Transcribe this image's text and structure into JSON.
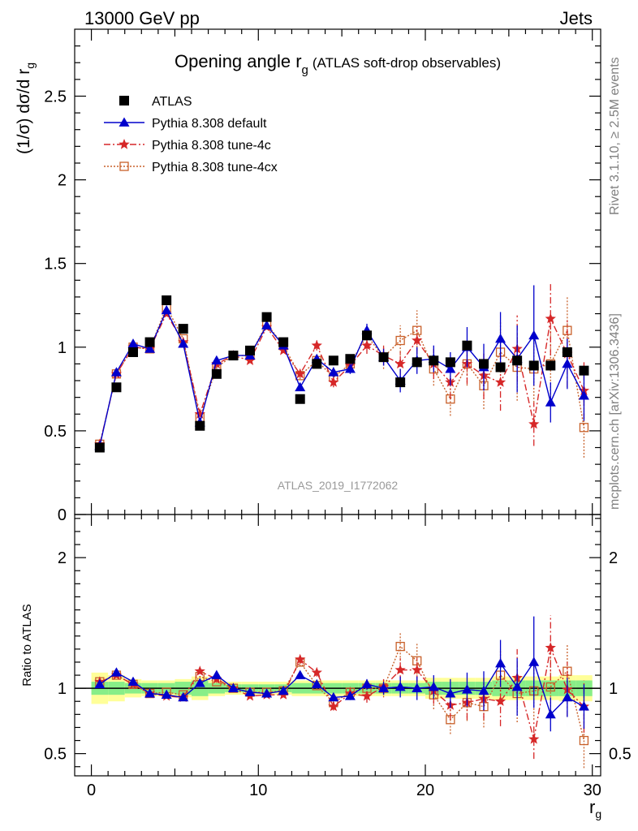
{
  "header": {
    "left": "13000 GeV pp",
    "right": "Jets"
  },
  "side_labels": {
    "rivet": "Rivet 3.1.10, ≥ 2.5M events",
    "mcplots": "mcplots.cern.ch [arXiv:1306.3436]"
  },
  "chart_data": [
    {
      "type": "scatter",
      "title_main": "Opening angle r",
      "title_sub": "g",
      "title_extra": "(ATLAS soft-drop observables)",
      "ylabel": "(1/σ) dσ/d r",
      "ylabel_sub": "g",
      "watermark": "ATLAS_2019_I1772062",
      "xlim": [
        -1,
        30.5
      ],
      "ylim": [
        0,
        2.9
      ],
      "yticks": [
        0,
        0.5,
        1,
        1.5,
        2,
        2.5
      ],
      "ytick_labels": [
        "0",
        "0.5",
        "1",
        "1.5",
        "2",
        "2.5"
      ],
      "x": [
        0.5,
        1.5,
        2.5,
        3.5,
        4.5,
        5.5,
        6.5,
        7.5,
        8.5,
        9.5,
        10.5,
        11.5,
        12.5,
        13.5,
        14.5,
        15.5,
        16.5,
        17.5,
        18.5,
        19.5,
        20.5,
        21.5,
        22.5,
        23.5,
        24.5,
        25.5,
        26.5,
        27.5,
        28.5,
        29.5
      ],
      "legend": [
        "ATLAS",
        "Pythia 8.308 default",
        "Pythia 8.308 tune-4c",
        "Pythia 8.308 tune-4cx"
      ],
      "series": [
        {
          "name": "ATLAS",
          "color": "#000000",
          "values": [
            0.4,
            0.76,
            0.97,
            1.03,
            1.28,
            1.11,
            0.53,
            0.84,
            0.95,
            0.98,
            1.18,
            1.03,
            0.69,
            0.9,
            0.92,
            0.93,
            1.07,
            0.94,
            0.79,
            0.91,
            0.92,
            0.91,
            1.01,
            0.9,
            0.88,
            0.92,
            0.89,
            0.89,
            0.97,
            0.86
          ]
        },
        {
          "name": "Pythia 8.308 default",
          "color": "#0000cc",
          "values": [
            0.41,
            0.85,
            1.02,
            0.99,
            1.22,
            1.02,
            0.55,
            0.92,
            0.95,
            0.95,
            1.13,
            1.01,
            0.76,
            0.93,
            0.85,
            0.87,
            1.1,
            0.94,
            0.8,
            0.92,
            0.93,
            0.87,
            1.0,
            0.88,
            1.05,
            0.93,
            1.07,
            0.67,
            0.9,
            0.71
          ],
          "errors": [
            0.01,
            0.01,
            0.01,
            0.01,
            0.01,
            0.01,
            0.01,
            0.01,
            0.01,
            0.01,
            0.01,
            0.01,
            0.02,
            0.02,
            0.03,
            0.03,
            0.04,
            0.05,
            0.07,
            0.08,
            0.08,
            0.1,
            0.12,
            0.14,
            0.16,
            0.2,
            0.3,
            0.12,
            0.15,
            0.15
          ]
        },
        {
          "name": "Pythia 8.308 tune-4c",
          "color": "#d62728",
          "values": [
            0.42,
            0.84,
            1.0,
            0.99,
            1.2,
            1.03,
            0.6,
            0.9,
            0.95,
            0.92,
            1.12,
            0.98,
            0.84,
            1.01,
            0.79,
            0.89,
            1.01,
            0.95,
            0.9,
            1.04,
            0.9,
            0.79,
            0.9,
            0.83,
            0.79,
            0.99,
            0.54,
            1.17,
            0.96,
            0.74
          ],
          "errors": [
            0.01,
            0.01,
            0.01,
            0.01,
            0.01,
            0.01,
            0.01,
            0.01,
            0.01,
            0.01,
            0.01,
            0.01,
            0.02,
            0.03,
            0.03,
            0.04,
            0.05,
            0.06,
            0.07,
            0.08,
            0.09,
            0.1,
            0.12,
            0.14,
            0.17,
            0.2,
            0.13,
            0.22,
            0.2,
            0.17
          ]
        },
        {
          "name": "Pythia 8.308 tune-4cx",
          "color": "#c8602a",
          "values": [
            0.42,
            0.84,
            1.0,
            0.99,
            1.24,
            1.05,
            0.58,
            0.88,
            0.95,
            0.95,
            1.14,
            1.01,
            0.83,
            0.92,
            0.82,
            0.9,
            1.07,
            0.94,
            1.04,
            1.1,
            0.87,
            0.69,
            0.9,
            0.77,
            0.97,
            0.88,
            0.87,
            0.9,
            1.1,
            0.52
          ],
          "errors": [
            0.01,
            0.01,
            0.01,
            0.01,
            0.01,
            0.01,
            0.01,
            0.01,
            0.01,
            0.01,
            0.01,
            0.01,
            0.02,
            0.03,
            0.03,
            0.04,
            0.06,
            0.07,
            0.09,
            0.12,
            0.1,
            0.1,
            0.13,
            0.14,
            0.18,
            0.2,
            0.2,
            0.22,
            0.2,
            0.18
          ]
        }
      ]
    },
    {
      "type": "scatter",
      "ylabel": "Ratio to ATLAS",
      "xlabel": "r",
      "xlabel_sub": "g",
      "xlim": [
        -1,
        30.5
      ],
      "ylim": [
        0.33,
        2.33
      ],
      "xticks": [
        0,
        10,
        20,
        30
      ],
      "xtick_labels": [
        "0",
        "10",
        "20",
        "30"
      ],
      "yticks": [
        0.5,
        1,
        2
      ],
      "ytick_labels": [
        "0.5",
        "1",
        "2"
      ],
      "band_inner": [
        0.05,
        0.05,
        0.04,
        0.04,
        0.04,
        0.05,
        0.06,
        0.04,
        0.03,
        0.03,
        0.03,
        0.03,
        0.04,
        0.04,
        0.04,
        0.04,
        0.04,
        0.04,
        0.04,
        0.04,
        0.05,
        0.05,
        0.05,
        0.05,
        0.06,
        0.06,
        0.06,
        0.06,
        0.06,
        0.06
      ],
      "band_outer": [
        0.12,
        0.1,
        0.07,
        0.06,
        0.06,
        0.07,
        0.09,
        0.06,
        0.05,
        0.05,
        0.05,
        0.05,
        0.06,
        0.06,
        0.06,
        0.06,
        0.06,
        0.06,
        0.06,
        0.06,
        0.08,
        0.08,
        0.08,
        0.08,
        0.09,
        0.09,
        0.09,
        0.09,
        0.1,
        0.1
      ],
      "series": [
        {
          "name": "Pythia 8.308 default",
          "color": "#0000cc",
          "values": [
            1.03,
            1.12,
            1.05,
            0.96,
            0.95,
            0.93,
            1.04,
            1.1,
            1.0,
            0.97,
            0.96,
            0.98,
            1.1,
            1.03,
            0.93,
            0.94,
            1.03,
            1.0,
            1.01,
            1.0,
            1.01,
            0.96,
            0.99,
            0.98,
            1.19,
            1.01,
            1.2,
            0.8,
            0.93,
            0.86
          ],
          "errors": [
            0.01,
            0.01,
            0.01,
            0.01,
            0.01,
            0.01,
            0.01,
            0.01,
            0.01,
            0.01,
            0.01,
            0.01,
            0.02,
            0.03,
            0.03,
            0.03,
            0.04,
            0.05,
            0.08,
            0.09,
            0.09,
            0.11,
            0.13,
            0.15,
            0.18,
            0.22,
            0.35,
            0.13,
            0.15,
            0.17
          ]
        },
        {
          "name": "Pythia 8.308 tune-4c",
          "color": "#d62728",
          "values": [
            1.05,
            1.1,
            1.03,
            0.96,
            0.94,
            0.93,
            1.13,
            1.07,
            1.0,
            0.94,
            0.95,
            0.95,
            1.22,
            1.12,
            0.86,
            0.96,
            0.94,
            1.01,
            1.14,
            1.14,
            0.98,
            0.87,
            0.89,
            0.92,
            0.9,
            1.08,
            0.61,
            1.31,
            0.99,
            0.86
          ],
          "errors": [
            0.01,
            0.01,
            0.01,
            0.01,
            0.01,
            0.01,
            0.01,
            0.01,
            0.01,
            0.01,
            0.01,
            0.01,
            0.03,
            0.03,
            0.03,
            0.04,
            0.05,
            0.06,
            0.09,
            0.09,
            0.1,
            0.11,
            0.13,
            0.16,
            0.19,
            0.22,
            0.15,
            0.25,
            0.21,
            0.2
          ]
        },
        {
          "name": "Pythia 8.308 tune-4cx",
          "color": "#c8602a",
          "values": [
            1.05,
            1.1,
            1.03,
            0.96,
            0.97,
            0.95,
            1.09,
            1.05,
            1.0,
            0.97,
            0.97,
            0.98,
            1.2,
            1.02,
            0.89,
            0.97,
            1.0,
            1.0,
            1.32,
            1.21,
            0.95,
            0.76,
            0.89,
            0.86,
            1.1,
            0.96,
            0.98,
            1.01,
            1.13,
            0.6
          ],
          "errors": [
            0.01,
            0.01,
            0.01,
            0.01,
            0.01,
            0.01,
            0.01,
            0.01,
            0.01,
            0.01,
            0.01,
            0.01,
            0.03,
            0.03,
            0.03,
            0.04,
            0.06,
            0.07,
            0.11,
            0.13,
            0.11,
            0.11,
            0.14,
            0.16,
            0.2,
            0.22,
            0.22,
            0.25,
            0.21,
            0.21
          ]
        }
      ]
    }
  ]
}
